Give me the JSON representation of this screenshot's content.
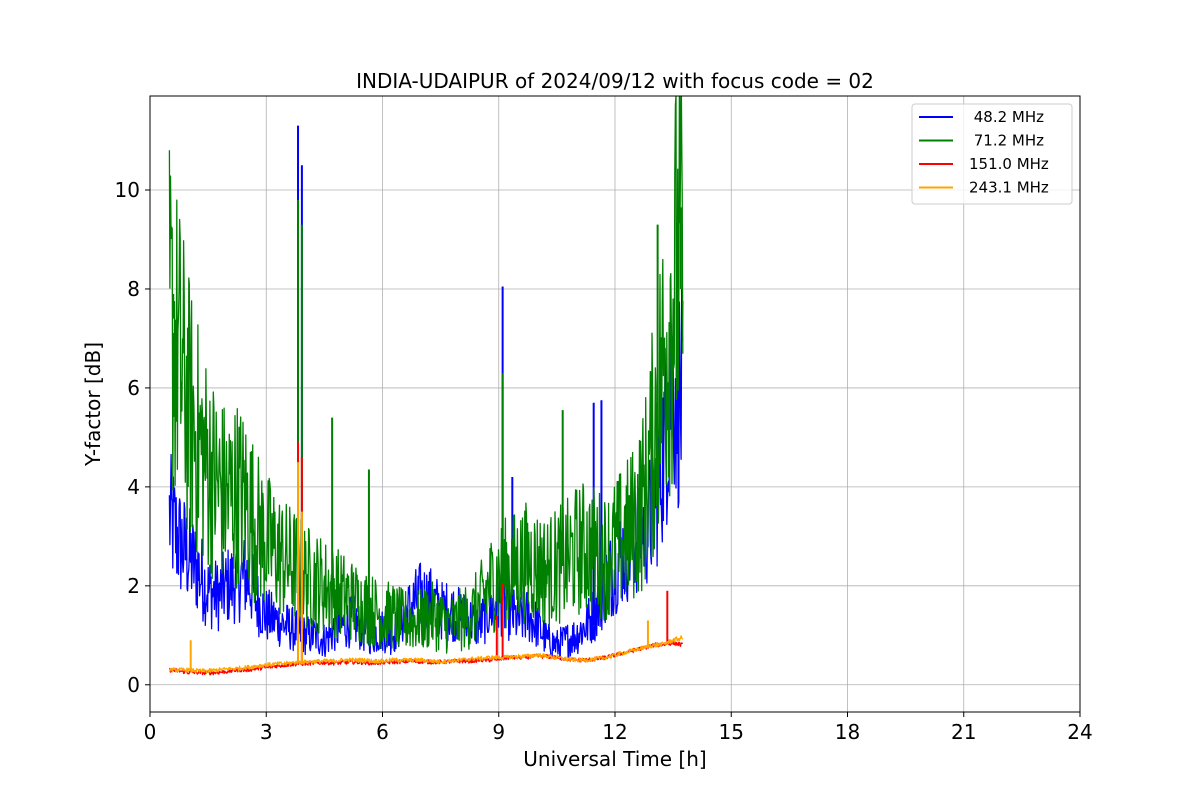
{
  "chart_data": {
    "type": "line",
    "title": "INDIA-UDAIPUR of 2024/09/12 with focus code = 02",
    "xlabel": "Universal Time [h]",
    "ylabel": "Y-factor [dB]",
    "xlim": [
      0,
      24
    ],
    "ylim": [
      -0.55,
      11.9
    ],
    "xticks": [
      0,
      3,
      6,
      9,
      12,
      15,
      18,
      21,
      24
    ],
    "yticks": [
      0,
      2,
      4,
      6,
      8,
      10
    ],
    "grid": true,
    "legend_position": "top-right",
    "x": [
      0.5,
      0.75,
      1.0,
      1.25,
      1.5,
      1.75,
      2.0,
      2.25,
      2.5,
      2.75,
      3.0,
      3.25,
      3.5,
      3.75,
      4.0,
      4.25,
      4.5,
      4.75,
      5.0,
      5.25,
      5.5,
      5.75,
      6.0,
      6.25,
      6.5,
      6.75,
      7.0,
      7.25,
      7.5,
      7.75,
      8.0,
      8.25,
      8.5,
      8.75,
      9.0,
      9.25,
      9.5,
      9.75,
      10.0,
      10.25,
      10.5,
      10.75,
      11.0,
      11.25,
      11.5,
      11.75,
      12.0,
      12.25,
      12.5,
      12.75,
      13.0,
      13.25,
      13.5,
      13.75
    ],
    "series": [
      {
        "name": " 48.2 MHz",
        "color": "#0000ff",
        "values": [
          3.4,
          2.9,
          2.6,
          2.3,
          1.9,
          1.8,
          2.0,
          2.1,
          2.2,
          1.7,
          1.4,
          1.3,
          1.2,
          1.1,
          1.0,
          1.0,
          0.9,
          1.1,
          1.2,
          1.3,
          1.1,
          1.0,
          1.1,
          1.0,
          1.3,
          1.6,
          1.8,
          1.7,
          1.5,
          1.5,
          1.4,
          1.3,
          1.2,
          1.5,
          1.7,
          1.5,
          1.3,
          1.4,
          1.2,
          0.9,
          0.8,
          0.9,
          1.0,
          1.2,
          1.5,
          2.0,
          2.4,
          2.7,
          2.9,
          3.2,
          3.5,
          4.8,
          6.3,
          5.6
        ],
        "spikes": [
          {
            "x": 3.82,
            "y": 11.3
          },
          {
            "x": 3.92,
            "y": 10.5
          },
          {
            "x": 9.1,
            "y": 8.05
          },
          {
            "x": 11.45,
            "y": 5.7
          },
          {
            "x": 11.65,
            "y": 5.75
          },
          {
            "x": 9.35,
            "y": 4.2
          }
        ]
      },
      {
        "name": " 71.2 MHz",
        "color": "#008000",
        "values": [
          7.4,
          6.6,
          5.6,
          4.9,
          4.4,
          4.0,
          3.8,
          3.9,
          3.7,
          3.2,
          2.9,
          2.7,
          2.5,
          2.4,
          2.2,
          2.1,
          2.0,
          1.9,
          1.8,
          1.7,
          1.6,
          1.5,
          1.4,
          1.4,
          1.3,
          1.3,
          1.3,
          1.4,
          1.3,
          1.2,
          1.3,
          1.4,
          1.6,
          2.0,
          2.2,
          2.3,
          2.4,
          2.5,
          2.4,
          2.3,
          2.4,
          2.5,
          2.7,
          2.8,
          2.7,
          2.6,
          2.8,
          3.0,
          3.3,
          3.8,
          5.0,
          6.5,
          8.0,
          8.8
        ],
        "spikes": [
          {
            "x": 0.6,
            "y": 7.9
          },
          {
            "x": 3.82,
            "y": 9.8
          },
          {
            "x": 3.92,
            "y": 9.3
          },
          {
            "x": 9.1,
            "y": 6.3
          },
          {
            "x": 4.7,
            "y": 5.4
          },
          {
            "x": 10.65,
            "y": 5.55
          },
          {
            "x": 13.1,
            "y": 9.3
          },
          {
            "x": 13.7,
            "y": 9.65
          },
          {
            "x": 5.65,
            "y": 4.35
          }
        ]
      },
      {
        "name": "151.0 MHz",
        "color": "#ff0000",
        "values": [
          0.3,
          0.28,
          0.25,
          0.25,
          0.24,
          0.25,
          0.27,
          0.3,
          0.3,
          0.33,
          0.35,
          0.38,
          0.4,
          0.42,
          0.43,
          0.44,
          0.45,
          0.44,
          0.45,
          0.46,
          0.45,
          0.44,
          0.45,
          0.46,
          0.47,
          0.48,
          0.47,
          0.46,
          0.46,
          0.47,
          0.48,
          0.48,
          0.5,
          0.5,
          0.52,
          0.55,
          0.55,
          0.56,
          0.58,
          0.57,
          0.55,
          0.52,
          0.5,
          0.5,
          0.52,
          0.55,
          0.6,
          0.65,
          0.7,
          0.75,
          0.8,
          0.82,
          0.85,
          0.8
        ],
        "spikes": [
          {
            "x": 3.82,
            "y": 4.9
          },
          {
            "x": 3.92,
            "y": 4.6
          },
          {
            "x": 9.1,
            "y": 2.05
          },
          {
            "x": 13.35,
            "y": 1.9
          },
          {
            "x": 8.95,
            "y": 1.4
          }
        ]
      },
      {
        "name": "243.1 MHz",
        "color": "#ffa500",
        "values": [
          0.3,
          0.3,
          0.3,
          0.28,
          0.28,
          0.3,
          0.32,
          0.33,
          0.35,
          0.38,
          0.4,
          0.42,
          0.43,
          0.45,
          0.46,
          0.47,
          0.48,
          0.48,
          0.5,
          0.5,
          0.5,
          0.48,
          0.48,
          0.5,
          0.5,
          0.5,
          0.5,
          0.48,
          0.47,
          0.48,
          0.5,
          0.52,
          0.53,
          0.55,
          0.55,
          0.56,
          0.57,
          0.58,
          0.6,
          0.58,
          0.55,
          0.52,
          0.5,
          0.5,
          0.52,
          0.55,
          0.6,
          0.65,
          0.7,
          0.75,
          0.8,
          0.82,
          0.9,
          0.95
        ],
        "spikes": [
          {
            "x": 3.82,
            "y": 4.5
          },
          {
            "x": 3.92,
            "y": 3.5
          },
          {
            "x": 1.05,
            "y": 0.9
          },
          {
            "x": 12.85,
            "y": 1.3
          }
        ]
      }
    ]
  }
}
